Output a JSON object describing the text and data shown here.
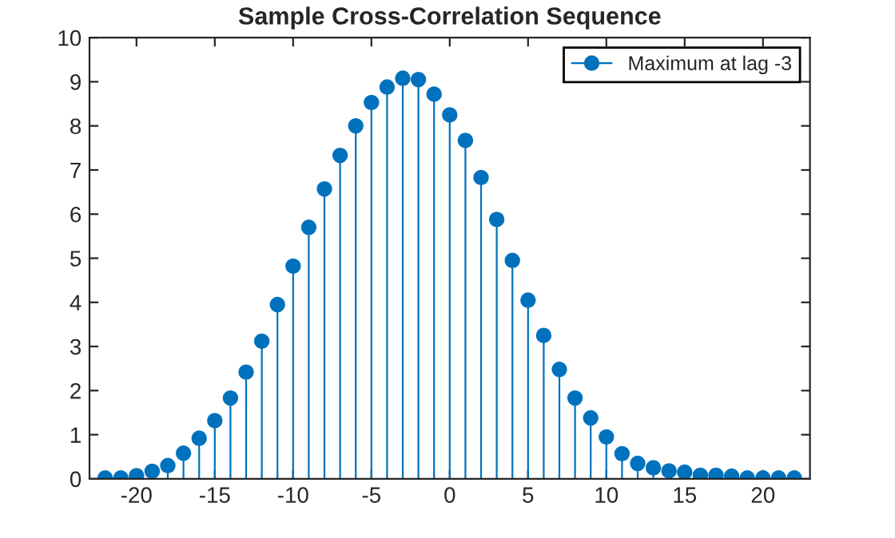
{
  "chart_data": {
    "type": "lollipop",
    "title": "Sample Cross-Correlation Sequence",
    "x": [
      -22,
      -21,
      -20,
      -19,
      -18,
      -17,
      -16,
      -15,
      -14,
      -13,
      -12,
      -11,
      -10,
      -9,
      -8,
      -7,
      -6,
      -5,
      -4,
      -3,
      -2,
      -1,
      0,
      1,
      2,
      3,
      4,
      5,
      6,
      7,
      8,
      9,
      10,
      11,
      12,
      13,
      14,
      15,
      16,
      17,
      18,
      19,
      20,
      21,
      22
    ],
    "series": [
      {
        "name": "Maximum at lag -3",
        "color": "#0072bd",
        "values": [
          0.02,
          0.02,
          0.07,
          0.17,
          0.3,
          0.58,
          0.92,
          1.32,
          1.83,
          2.42,
          3.12,
          3.95,
          4.82,
          5.7,
          6.57,
          7.33,
          8.0,
          8.53,
          8.88,
          9.08,
          9.05,
          8.72,
          8.25,
          7.67,
          6.83,
          5.88,
          4.95,
          4.05,
          3.25,
          2.48,
          1.83,
          1.38,
          0.95,
          0.57,
          0.35,
          0.25,
          0.18,
          0.15,
          0.08,
          0.08,
          0.06,
          0.02,
          0.02,
          0.02,
          0.02
        ]
      }
    ],
    "xlim": [
      -23,
      23
    ],
    "xticks": [
      -20,
      -15,
      -10,
      -5,
      0,
      5,
      10,
      15,
      20
    ],
    "ylim": [
      0,
      10
    ],
    "yticks": [
      0,
      1,
      2,
      3,
      4,
      5,
      6,
      7,
      8,
      9,
      10
    ],
    "marker": "circle",
    "legend": "top right"
  }
}
